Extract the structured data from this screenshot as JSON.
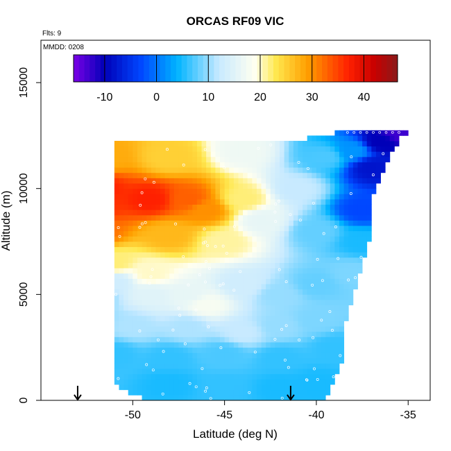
{
  "chart_data": {
    "type": "heatmap",
    "title": "ORCAS RF09 VIC",
    "flights_note": "Flts: 9",
    "date_note": "MMDD: 0208",
    "xlabel": "Latitude (deg N)",
    "ylabel": "Altitude (m)",
    "xlim": [
      -55,
      -33.8
    ],
    "ylim": [
      0,
      17000
    ],
    "x_ticks": [
      -50,
      -45,
      -40,
      -35
    ],
    "x_tick_labels": [
      "-50",
      "-45",
      "-40",
      "-35"
    ],
    "y_ticks": [
      0,
      5000,
      10000,
      15000
    ],
    "y_tick_labels": [
      "0",
      "5000",
      "10000",
      "15000"
    ],
    "grid": false,
    "colorbar": {
      "placement": "top-inside",
      "range": [
        -16,
        46.5
      ],
      "ticks": [
        -10,
        0,
        10,
        20,
        30,
        40
      ],
      "tick_labels": [
        "-10",
        "0",
        "10",
        "20",
        "30",
        "40"
      ],
      "colors": [
        "#7b00e6",
        "#0000b8",
        "#0047ff",
        "#00b4ff",
        "#c8eaff",
        "#fffff0",
        "#ffe850",
        "#ffa000",
        "#ff2000",
        "#c80000",
        "#8a1a1a"
      ],
      "color_positions": [
        -16,
        -10,
        -3,
        4,
        12,
        19,
        23,
        29,
        37,
        42,
        46.5
      ]
    },
    "markers": {
      "type": "down-arrow",
      "x": [
        -53,
        -41.4
      ],
      "y": 0
    },
    "data_envelope": {
      "left_boundary": [
        [
          -49,
          0
        ],
        [
          -50,
          300
        ],
        [
          -51,
          700
        ],
        [
          -52,
          1200
        ],
        [
          -52.5,
          2000
        ],
        [
          -52.8,
          2800
        ],
        [
          -53.2,
          3100
        ],
        [
          -52.5,
          4000
        ],
        [
          -52.5,
          6000
        ],
        [
          -52,
          7000
        ],
        [
          -52,
          8000
        ],
        [
          -51.5,
          9000
        ],
        [
          -51.5,
          10500
        ],
        [
          -51,
          11500
        ],
        [
          -51,
          12200
        ]
      ],
      "right_boundary": [
        [
          -39.5,
          0
        ],
        [
          -39,
          1000
        ],
        [
          -38.5,
          2000
        ],
        [
          -38.5,
          3500
        ],
        [
          -38,
          5000
        ],
        [
          -37.5,
          6500
        ],
        [
          -37,
          8000
        ],
        [
          -37,
          9500
        ],
        [
          -36.5,
          10500
        ],
        [
          -36,
          11500
        ],
        [
          -35.5,
          12300
        ],
        [
          -35,
          12700
        ]
      ],
      "top_boundary": [
        [
          -51,
          12200
        ],
        [
          -45,
          12200
        ],
        [
          -43.5,
          12300
        ],
        [
          -42,
          12300
        ],
        [
          -40,
          12400
        ],
        [
          -38.5,
          12700
        ],
        [
          -35,
          12700
        ]
      ]
    },
    "field_anchors": [
      {
        "lat": -52,
        "alt": 10000,
        "value": 37
      },
      {
        "lat": -52,
        "alt": 9200,
        "value": 36
      },
      {
        "lat": -52,
        "alt": 8000,
        "value": 32
      },
      {
        "lat": -51.5,
        "alt": 11500,
        "value": 28
      },
      {
        "lat": -49,
        "alt": 9500,
        "value": 37
      },
      {
        "lat": -47,
        "alt": 9500,
        "value": 33
      },
      {
        "lat": -46,
        "alt": 9000,
        "value": 30
      },
      {
        "lat": -48,
        "alt": 11500,
        "value": 25
      },
      {
        "lat": -48,
        "alt": 7800,
        "value": 27
      },
      {
        "lat": -44,
        "alt": 9500,
        "value": 22
      },
      {
        "lat": -44,
        "alt": 11800,
        "value": 17
      },
      {
        "lat": -45,
        "alt": 7500,
        "value": 21
      },
      {
        "lat": -43,
        "alt": 8500,
        "value": 16
      },
      {
        "lat": -41,
        "alt": 10000,
        "value": 12
      },
      {
        "lat": -40,
        "alt": 8000,
        "value": 8
      },
      {
        "lat": -39.5,
        "alt": 11500,
        "value": 7
      },
      {
        "lat": -38,
        "alt": 11800,
        "value": 2
      },
      {
        "lat": -37,
        "alt": 11000,
        "value": -8
      },
      {
        "lat": -36.5,
        "alt": 12200,
        "value": -10
      },
      {
        "lat": -35.5,
        "alt": 12600,
        "value": -13
      },
      {
        "lat": -37.5,
        "alt": 9000,
        "value": -3
      },
      {
        "lat": -37.5,
        "alt": 7500,
        "value": 5
      },
      {
        "lat": -38,
        "alt": 6000,
        "value": 9
      },
      {
        "lat": -51,
        "alt": 6500,
        "value": 22
      },
      {
        "lat": -49,
        "alt": 6000,
        "value": 20
      },
      {
        "lat": -51,
        "alt": 5600,
        "value": 13
      },
      {
        "lat": -52,
        "alt": 5000,
        "value": 9
      },
      {
        "lat": -49,
        "alt": 5000,
        "value": 15
      },
      {
        "lat": -47,
        "alt": 5000,
        "value": 16
      },
      {
        "lat": -46,
        "alt": 4500,
        "value": 18
      },
      {
        "lat": -44,
        "alt": 5500,
        "value": 13
      },
      {
        "lat": -42,
        "alt": 5000,
        "value": 10
      },
      {
        "lat": -40,
        "alt": 5500,
        "value": 8
      },
      {
        "lat": -52,
        "alt": 3800,
        "value": 10
      },
      {
        "lat": -50,
        "alt": 3500,
        "value": 11
      },
      {
        "lat": -47,
        "alt": 3500,
        "value": 11
      },
      {
        "lat": -44,
        "alt": 3200,
        "value": 12
      },
      {
        "lat": -42,
        "alt": 3500,
        "value": 10
      },
      {
        "lat": -40,
        "alt": 3800,
        "value": 9
      },
      {
        "lat": -39,
        "alt": 2500,
        "value": 6
      },
      {
        "lat": -51,
        "alt": 2200,
        "value": 6
      },
      {
        "lat": -48,
        "alt": 2000,
        "value": 6
      },
      {
        "lat": -45,
        "alt": 2200,
        "value": 7
      },
      {
        "lat": -42,
        "alt": 2000,
        "value": 6
      },
      {
        "lat": -48,
        "alt": 800,
        "value": 5
      },
      {
        "lat": -45,
        "alt": 600,
        "value": 6
      },
      {
        "lat": -42,
        "alt": 600,
        "value": 5
      },
      {
        "lat": -40,
        "alt": 800,
        "value": 5
      }
    ]
  }
}
